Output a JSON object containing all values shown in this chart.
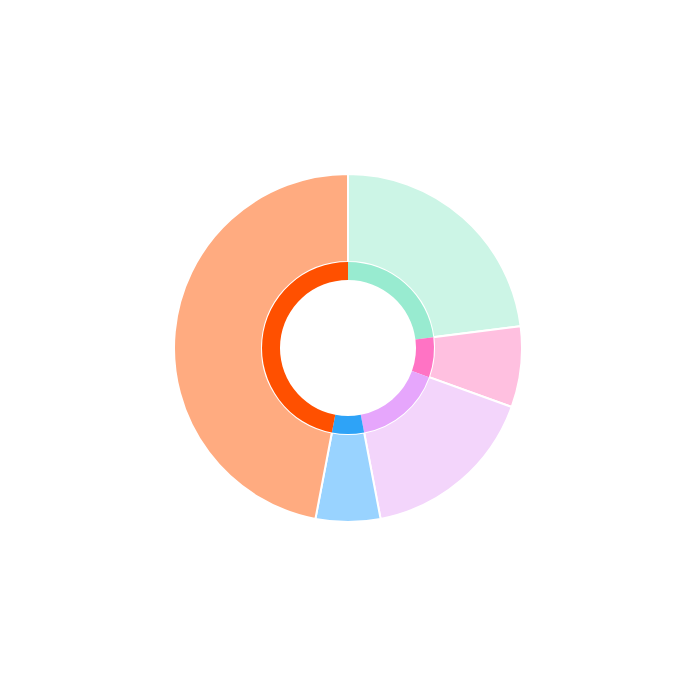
{
  "chart_data": {
    "type": "donut",
    "categories": [
      null,
      null,
      null,
      null,
      null
    ],
    "series": [
      {
        "colors": [
          "#ccf5e6",
          "#ffc0e0",
          "#f3d5fb",
          "#99d3ff",
          "#ffab80"
        ],
        "values": [
          23,
          7.5,
          16.5,
          6,
          47
        ]
      },
      {
        "colors": [
          "#98ebd0",
          "#ff73c4",
          "#e6a6fc",
          "#2ea3f7",
          "#ff5000"
        ],
        "values": [
          23,
          7.5,
          16.5,
          6,
          47
        ]
      }
    ]
  }
}
